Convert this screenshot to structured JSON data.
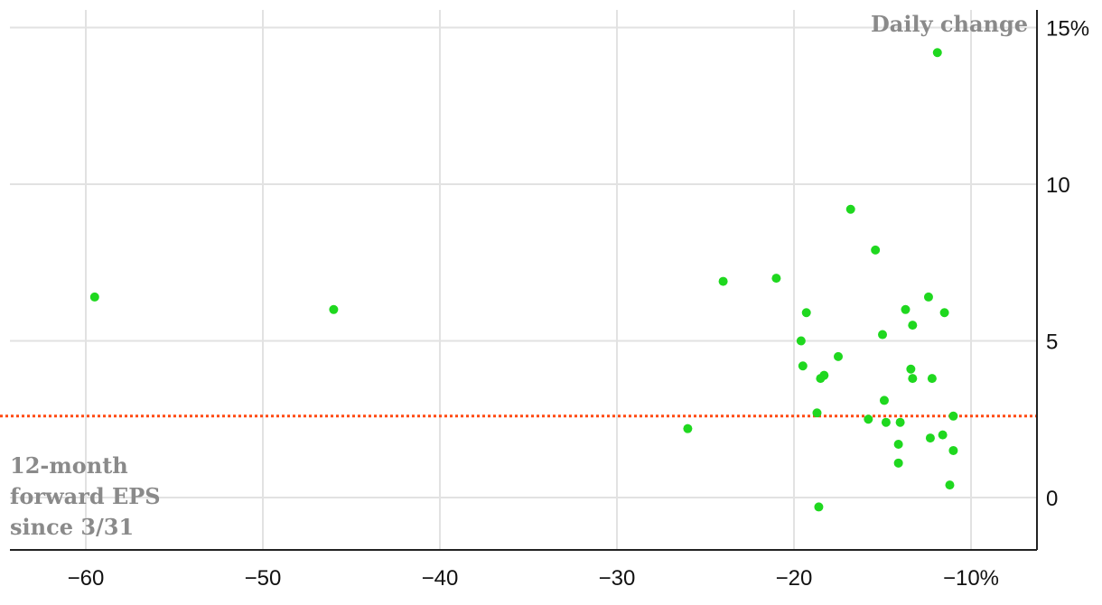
{
  "chart_data": {
    "type": "scatter",
    "title": "",
    "xlabel": "12-month forward EPS since 3/31",
    "ylabel": "Daily change",
    "xlim": [
      -64.5,
      -6.5
    ],
    "ylim": [
      -1.7,
      15.5
    ],
    "x_ticks": [
      {
        "value": -60,
        "label": "−60"
      },
      {
        "value": -50,
        "label": "−50"
      },
      {
        "value": -40,
        "label": "−40"
      },
      {
        "value": -30,
        "label": "−30"
      },
      {
        "value": -20,
        "label": "−20"
      },
      {
        "value": -10,
        "label": "−10%"
      }
    ],
    "y_ticks": [
      {
        "value": 0,
        "label": "0"
      },
      {
        "value": 5,
        "label": "5"
      },
      {
        "value": 10,
        "label": "10"
      },
      {
        "value": 15,
        "label": "15%"
      }
    ],
    "annotations": {
      "y_axis_title": "Daily change",
      "x_axis_title_lines": [
        "12-month",
        "forward EPS",
        "since 3/31"
      ]
    },
    "reference_line": {
      "y": 2.6,
      "color": "#ff4a12",
      "style": "dotted"
    },
    "grid": true,
    "point_color": "#1fd81f",
    "points": [
      {
        "x": -59.5,
        "y": 6.4
      },
      {
        "x": -46.0,
        "y": 6.0
      },
      {
        "x": -26.0,
        "y": 2.2
      },
      {
        "x": -24.0,
        "y": 6.9
      },
      {
        "x": -21.0,
        "y": 7.0
      },
      {
        "x": -19.3,
        "y": 5.9
      },
      {
        "x": -19.6,
        "y": 5.0
      },
      {
        "x": -19.5,
        "y": 4.2
      },
      {
        "x": -18.5,
        "y": 3.8
      },
      {
        "x": -18.3,
        "y": 3.9
      },
      {
        "x": -18.7,
        "y": 2.7
      },
      {
        "x": -18.6,
        "y": -0.3
      },
      {
        "x": -17.5,
        "y": 4.5
      },
      {
        "x": -16.8,
        "y": 9.2
      },
      {
        "x": -15.4,
        "y": 7.9
      },
      {
        "x": -15.0,
        "y": 5.2
      },
      {
        "x": -14.9,
        "y": 3.1
      },
      {
        "x": -14.8,
        "y": 2.4
      },
      {
        "x": -15.8,
        "y": 2.5
      },
      {
        "x": -14.1,
        "y": 1.7
      },
      {
        "x": -14.1,
        "y": 1.1
      },
      {
        "x": -14.0,
        "y": 2.4
      },
      {
        "x": -13.7,
        "y": 6.0
      },
      {
        "x": -13.4,
        "y": 4.1
      },
      {
        "x": -13.3,
        "y": 5.5
      },
      {
        "x": -13.3,
        "y": 3.8
      },
      {
        "x": -12.4,
        "y": 6.4
      },
      {
        "x": -12.2,
        "y": 3.8
      },
      {
        "x": -12.3,
        "y": 1.9
      },
      {
        "x": -11.9,
        "y": 14.2
      },
      {
        "x": -11.5,
        "y": 5.9
      },
      {
        "x": -11.6,
        "y": 2.0
      },
      {
        "x": -11.2,
        "y": 0.4
      },
      {
        "x": -11.0,
        "y": 2.6
      },
      {
        "x": -11.0,
        "y": 1.5
      }
    ]
  }
}
